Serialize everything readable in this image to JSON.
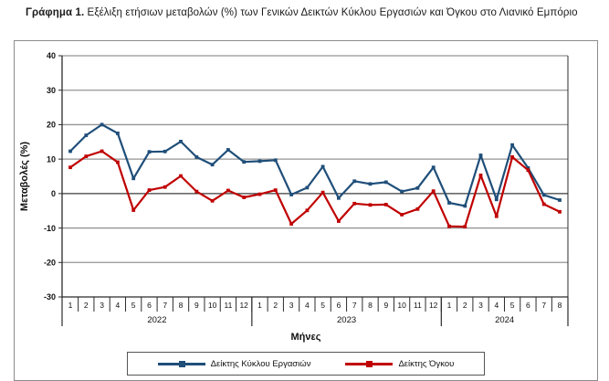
{
  "title": {
    "prefix": "Γράφημα 1.",
    "text": " Εξέλιξη ετήσιων μεταβολών (%) των Γενικών Δεικτών Κύκλου Εργασιών και Όγκου στο Λιανικό Εμπόριο"
  },
  "chart_data": {
    "type": "line",
    "title": "",
    "xlabel": "Μήνες",
    "ylabel": "Μεταβολές  (%)",
    "ylim": [
      -30,
      40
    ],
    "ytick_interval": 10,
    "grid": true,
    "legend_position": "bottom",
    "years": [
      {
        "label": "2022",
        "count": 12
      },
      {
        "label": "2023",
        "count": 12
      },
      {
        "label": "2024",
        "count": 8
      }
    ],
    "month_labels": [
      "1",
      "2",
      "3",
      "4",
      "5",
      "6",
      "7",
      "8",
      "9",
      "10",
      "11",
      "12",
      "1",
      "2",
      "3",
      "4",
      "5",
      "6",
      "7",
      "8",
      "9",
      "10",
      "11",
      "12",
      "1",
      "2",
      "3",
      "4",
      "5",
      "6",
      "7",
      "8"
    ],
    "series": [
      {
        "name": "Δείκτης Κύκλου Εργασιών",
        "color": "#1F4E79",
        "marker": "square",
        "values": [
          12.3,
          16.9,
          20.0,
          17.5,
          4.4,
          12.1,
          12.2,
          15.1,
          10.6,
          8.4,
          12.7,
          9.2,
          9.4,
          9.7,
          -0.3,
          1.7,
          7.8,
          -1.3,
          3.6,
          2.8,
          3.3,
          0.6,
          1.6,
          7.6,
          -2.7,
          -3.6,
          11.1,
          -1.7,
          14.1,
          7.4,
          -0.4,
          -1.9
        ]
      },
      {
        "name": "Δείκτης Όγκου",
        "color": "#C00000",
        "marker": "square",
        "values": [
          7.6,
          10.8,
          12.3,
          9.1,
          -4.8,
          1.0,
          1.9,
          5.1,
          0.6,
          -2.1,
          0.9,
          -1.1,
          -0.2,
          1.0,
          -8.8,
          -4.9,
          0.3,
          -8.0,
          -2.9,
          -3.3,
          -3.2,
          -6.1,
          -4.5,
          0.7,
          -9.5,
          -9.6,
          5.3,
          -6.6,
          10.6,
          6.8,
          -3.1,
          -5.3
        ]
      }
    ],
    "colors": {
      "gridline": "#949494",
      "zero_line": "#3c3c3c",
      "axis": "#2b2b2b",
      "text": "#111111"
    }
  }
}
